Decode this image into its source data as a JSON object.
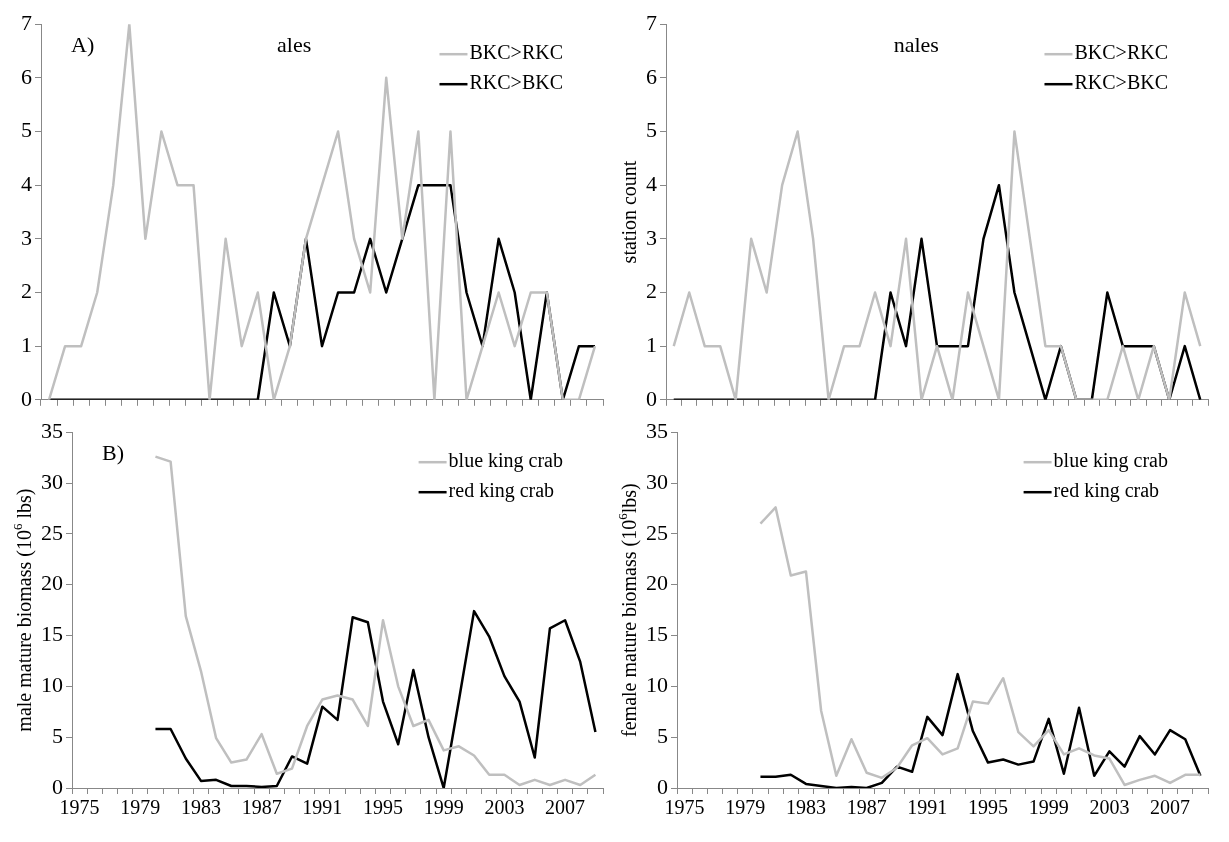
{
  "chart_data": [
    {
      "type": "line",
      "annotations": [
        "A)",
        "ales"
      ],
      "ylim": [
        0,
        7
      ],
      "yticks": [
        0,
        1,
        2,
        3,
        4,
        5,
        6,
        7
      ],
      "grid": false,
      "legend": "top right",
      "marker": "none",
      "line_style": "solid",
      "tick_labels": "y",
      "categories": [
        null,
        null,
        null,
        null,
        null,
        null,
        null,
        null,
        null,
        null,
        null,
        null,
        null,
        null,
        null,
        null,
        null,
        null,
        null,
        null,
        null,
        null,
        null,
        null,
        null,
        null,
        null,
        null,
        null,
        null,
        null,
        null,
        null,
        null,
        null
      ],
      "series": [
        {
          "name": "BKC>RKC",
          "color": "#bfbfbf",
          "values": [
            0,
            1,
            1,
            2,
            4,
            7,
            3,
            5,
            4,
            4,
            0,
            3,
            1,
            2,
            0,
            1,
            3,
            4,
            5,
            3,
            2,
            6,
            3,
            5,
            0,
            5,
            0,
            1,
            2,
            1,
            2,
            2,
            0,
            0,
            1
          ]
        },
        {
          "name": "RKC>BKC",
          "color": "#000000",
          "values": [
            0,
            0,
            0,
            0,
            0,
            0,
            0,
            0,
            0,
            0,
            0,
            0,
            0,
            0,
            2,
            1,
            3,
            1,
            2,
            2,
            3,
            2,
            3,
            4,
            4,
            4,
            2,
            1,
            3,
            2,
            0,
            2,
            0,
            1,
            1
          ]
        }
      ]
    },
    {
      "type": "line",
      "annotations": [
        "nales"
      ],
      "ylabel": "station count",
      "ylim": [
        0,
        7
      ],
      "yticks": [
        0,
        1,
        2,
        3,
        4,
        5,
        6,
        7
      ],
      "grid": false,
      "legend": "top right",
      "marker": "none",
      "line_style": "solid",
      "tick_labels": "y",
      "categories": [
        null,
        null,
        null,
        null,
        null,
        null,
        null,
        null,
        null,
        null,
        null,
        null,
        null,
        null,
        null,
        null,
        null,
        null,
        null,
        null,
        null,
        null,
        null,
        null,
        null,
        null,
        null,
        null,
        null,
        null,
        null,
        null,
        null,
        null,
        null
      ],
      "series": [
        {
          "name": "BKC>RKC",
          "color": "#bfbfbf",
          "values": [
            1,
            2,
            1,
            1,
            0,
            3,
            2,
            4,
            5,
            3,
            0,
            1,
            1,
            2,
            1,
            3,
            0,
            1,
            0,
            2,
            1,
            0,
            5,
            3,
            1,
            1,
            0,
            0,
            0,
            1,
            0,
            1,
            0,
            2,
            1
          ]
        },
        {
          "name": "RKC>BKC",
          "color": "#000000",
          "values": [
            0,
            0,
            0,
            0,
            0,
            0,
            0,
            0,
            0,
            0,
            0,
            0,
            0,
            0,
            2,
            1,
            3,
            1,
            1,
            1,
            3,
            4,
            2,
            1,
            0,
            1,
            0,
            0,
            2,
            1,
            1,
            1,
            0,
            1,
            0
          ]
        }
      ]
    },
    {
      "type": "line",
      "annotations": [
        "B)"
      ],
      "ylabel": "male mature biomass (10$^{6}$ lbs)",
      "ylim": [
        0,
        35
      ],
      "yticks": [
        0,
        5,
        10,
        15,
        20,
        25,
        30,
        35
      ],
      "grid": false,
      "legend": "top right",
      "marker": "none",
      "line_style": "solid",
      "categories": [
        "1975",
        null,
        null,
        null,
        "1979",
        null,
        null,
        null,
        "1983",
        null,
        null,
        null,
        "1987",
        null,
        null,
        null,
        "1991",
        null,
        null,
        null,
        "1995",
        null,
        null,
        null,
        "1999",
        null,
        null,
        null,
        "2003",
        null,
        null,
        null,
        "2007",
        null,
        null
      ],
      "series": [
        {
          "name": "blue king crab",
          "color": "#bfbfbf",
          "values": [
            null,
            null,
            null,
            null,
            null,
            32.6,
            32.1,
            16.9,
            11.5,
            4.9,
            2.5,
            2.8,
            5.3,
            1.4,
            1.9,
            6.1,
            8.7,
            9.1,
            8.7,
            6.1,
            16.5,
            10.0,
            6.1,
            6.7,
            3.7,
            4.1,
            3.2,
            1.3,
            1.3,
            0.3,
            0.8,
            0.3,
            0.8,
            0.3,
            1.3
          ]
        },
        {
          "name": "red king crab",
          "color": "#000000",
          "values": [
            null,
            null,
            null,
            null,
            null,
            5.8,
            5.8,
            2.9,
            0.7,
            0.8,
            0.2,
            0.2,
            0.1,
            0.2,
            3.1,
            2.4,
            8.0,
            6.7,
            16.8,
            16.3,
            8.5,
            4.3,
            11.6,
            5.0,
            0,
            8.6,
            17.4,
            14.9,
            11.0,
            8.5,
            3.0,
            15.7,
            16.5,
            12.4,
            5.5
          ]
        }
      ]
    },
    {
      "type": "line",
      "ylabel": "female mature biomass (10$^{6}$lbs)",
      "ylim": [
        0,
        35
      ],
      "yticks": [
        0,
        5,
        10,
        15,
        20,
        25,
        30,
        35
      ],
      "grid": false,
      "legend": "top right",
      "marker": "none",
      "line_style": "solid",
      "categories": [
        "1975",
        null,
        null,
        null,
        "1979",
        null,
        null,
        null,
        "1983",
        null,
        null,
        null,
        "1987",
        null,
        null,
        null,
        "1991",
        null,
        null,
        null,
        "1995",
        null,
        null,
        null,
        "1999",
        null,
        null,
        null,
        "2003",
        null,
        null,
        null,
        "2007",
        null,
        null
      ],
      "series": [
        {
          "name": "blue king crab",
          "color": "#bfbfbf",
          "values": [
            null,
            null,
            null,
            null,
            null,
            26.0,
            27.6,
            20.9,
            21.3,
            7.6,
            1.2,
            4.8,
            1.5,
            1.0,
            2.0,
            4.2,
            4.9,
            3.3,
            3.9,
            8.5,
            8.3,
            10.8,
            5.5,
            4.1,
            5.7,
            3.3,
            3.9,
            3.2,
            2.9,
            0.3,
            0.8,
            1.2,
            0.5,
            1.3,
            1.3
          ]
        },
        {
          "name": "red king crab",
          "color": "#000000",
          "values": [
            null,
            null,
            null,
            null,
            null,
            1.1,
            1.1,
            1.3,
            0.4,
            0.2,
            0,
            0.1,
            0,
            0.5,
            2.1,
            1.6,
            7.0,
            5.2,
            11.2,
            5.6,
            2.5,
            2.8,
            2.3,
            2.6,
            6.8,
            1.4,
            7.9,
            1.2,
            3.6,
            2.1,
            5.1,
            3.3,
            5.7,
            4.8,
            1.2
          ]
        }
      ]
    }
  ]
}
